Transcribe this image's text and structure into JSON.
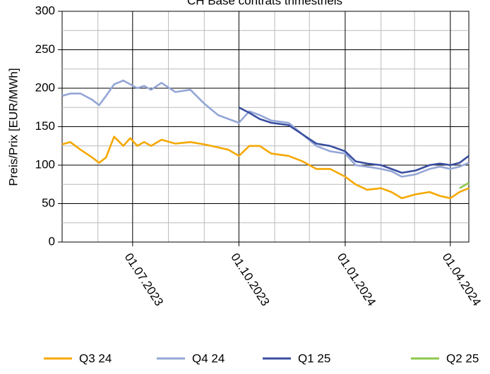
{
  "chart_data": {
    "type": "line",
    "title": "CH Base contrats trimestriels",
    "y_label": "Preis/Prix [EUR/MWh]",
    "xlim": [
      "2023-05-01",
      "2024-04-17"
    ],
    "xticks": [
      {
        "value": "2023-07-01",
        "label": "01.07.2023"
      },
      {
        "value": "2023-10-01",
        "label": "01.10.2023"
      },
      {
        "value": "2024-01-01",
        "label": "01.01.2024"
      },
      {
        "value": "2024-04-01",
        "label": "01.04.2024"
      }
    ],
    "xminor": [
      "2023-06-01",
      "2023-08-01",
      "2023-09-01",
      "2023-11-01",
      "2023-12-01",
      "2024-02-01",
      "2024-03-01"
    ],
    "ylim": [
      0,
      300
    ],
    "yticks": [
      0,
      50,
      100,
      150,
      200,
      250,
      300
    ],
    "yminor": [
      25,
      75,
      125,
      175,
      225,
      275
    ],
    "grid": true,
    "legend": "bottom",
    "x": [
      "2023-05-01",
      "2023-05-08",
      "2023-05-17",
      "2023-05-27",
      "2023-06-02",
      "2023-06-08",
      "2023-06-15",
      "2023-06-23",
      "2023-06-29",
      "2023-07-05",
      "2023-07-11",
      "2023-07-17",
      "2023-07-26",
      "2023-08-07",
      "2023-08-20",
      "2023-09-01",
      "2023-09-13",
      "2023-09-22",
      "2023-10-01",
      "2023-10-10",
      "2023-10-19",
      "2023-10-29",
      "2023-11-13",
      "2023-11-25",
      "2023-12-07",
      "2023-12-19",
      "2024-01-01",
      "2024-01-10",
      "2024-01-20",
      "2024-02-01",
      "2024-02-10",
      "2024-02-19",
      "2024-03-02",
      "2024-03-14",
      "2024-03-23",
      "2024-04-01",
      "2024-04-09",
      "2024-04-17"
    ],
    "series": [
      {
        "name": "Q3 24",
        "color": "#f5a800",
        "values": [
          127,
          130,
          120,
          110,
          103,
          110,
          137,
          125,
          135,
          125,
          130,
          125,
          133,
          128,
          130,
          127,
          123,
          120,
          112,
          125,
          125,
          115,
          112,
          105,
          95,
          95,
          85,
          75,
          68,
          70,
          65,
          57,
          62,
          65,
          60,
          57,
          65,
          70
        ]
      },
      {
        "name": "Q4 24",
        "color": "#94a6d6",
        "values": [
          190,
          193,
          193,
          185,
          178,
          190,
          205,
          210,
          205,
          200,
          203,
          198,
          207,
          195,
          198,
          180,
          165,
          160,
          155,
          170,
          165,
          158,
          155,
          140,
          125,
          118,
          115,
          100,
          98,
          95,
          92,
          85,
          88,
          95,
          98,
          95,
          98,
          103
        ]
      },
      {
        "name": "Q1 25",
        "color": "#3a4fa0",
        "values": [
          null,
          null,
          null,
          null,
          null,
          null,
          null,
          null,
          null,
          null,
          null,
          null,
          null,
          null,
          null,
          null,
          null,
          null,
          175,
          168,
          160,
          155,
          152,
          140,
          128,
          125,
          118,
          105,
          102,
          100,
          95,
          90,
          93,
          100,
          102,
          100,
          103,
          112
        ]
      },
      {
        "name": "Q2 25",
        "color": "#8cc84b",
        "values": [
          null,
          null,
          null,
          null,
          null,
          null,
          null,
          null,
          null,
          null,
          null,
          null,
          null,
          null,
          null,
          null,
          null,
          null,
          null,
          null,
          null,
          null,
          null,
          null,
          null,
          null,
          null,
          null,
          null,
          null,
          null,
          null,
          null,
          null,
          null,
          null,
          70,
          77
        ]
      }
    ]
  }
}
